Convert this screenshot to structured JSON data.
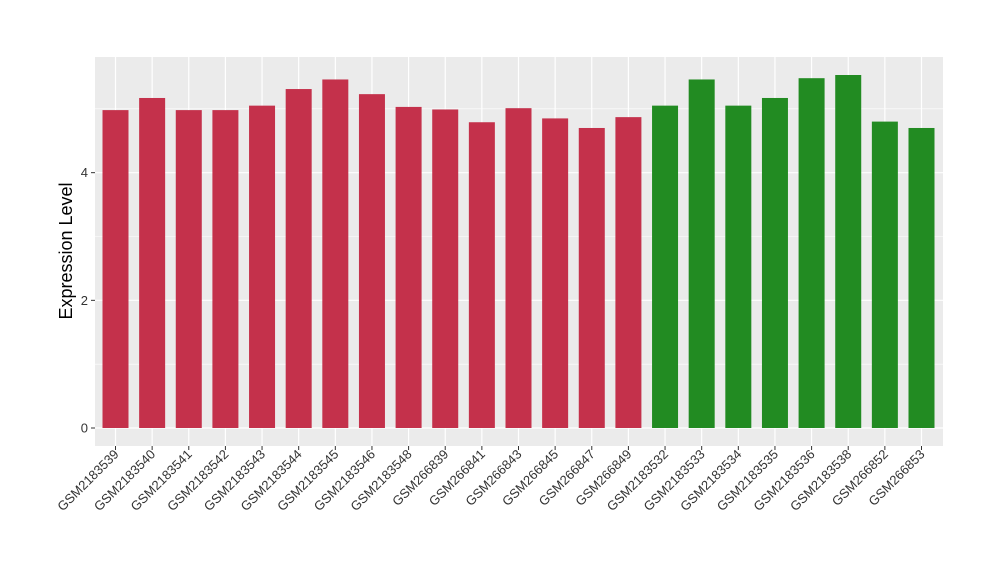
{
  "chart_data": {
    "type": "bar",
    "ylabel": "Expression Level",
    "xlabel": "",
    "ylim": [
      0,
      5.8
    ],
    "yticks": [
      0,
      2,
      4
    ],
    "grid": true,
    "legend": "none",
    "categories": [
      "GSM2183539",
      "GSM2183540",
      "GSM2183541",
      "GSM2183542",
      "GSM2183543",
      "GSM2183544",
      "GSM2183545",
      "GSM2183546",
      "GSM2183548",
      "GSM266839",
      "GSM266841",
      "GSM266843",
      "GSM266845",
      "GSM266847",
      "GSM266849",
      "GSM2183532",
      "GSM2183533",
      "GSM2183534",
      "GSM2183535",
      "GSM2183536",
      "GSM2183538",
      "GSM266852",
      "GSM266853"
    ],
    "values": [
      4.98,
      5.17,
      4.98,
      4.98,
      5.05,
      5.31,
      5.46,
      5.23,
      5.03,
      4.99,
      4.79,
      5.01,
      4.85,
      4.7,
      4.87,
      5.05,
      5.46,
      5.05,
      5.17,
      5.48,
      5.53,
      4.8,
      4.7
    ],
    "group_colors": [
      "#c4314b",
      "#228b22"
    ],
    "bar_colors": [
      "#c4314b",
      "#c4314b",
      "#c4314b",
      "#c4314b",
      "#c4314b",
      "#c4314b",
      "#c4314b",
      "#c4314b",
      "#c4314b",
      "#c4314b",
      "#c4314b",
      "#c4314b",
      "#c4314b",
      "#c4314b",
      "#c4314b",
      "#228b22",
      "#228b22",
      "#228b22",
      "#228b22",
      "#228b22",
      "#228b22",
      "#228b22",
      "#228b22"
    ],
    "panel_background": "#ebebeb",
    "gridline_color": "#ffffff"
  }
}
